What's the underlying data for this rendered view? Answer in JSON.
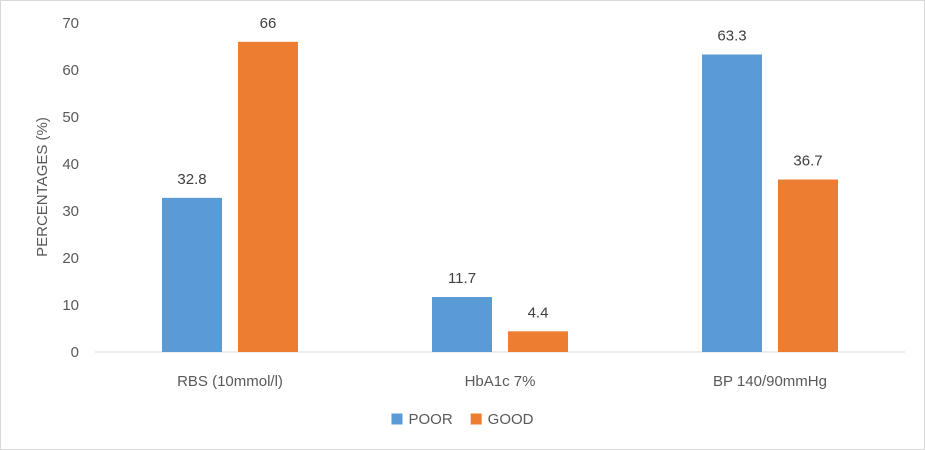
{
  "chart_data": {
    "type": "bar",
    "title": "",
    "xlabel": "",
    "ylabel": "PERCENTAGES (%)",
    "ylim": [
      0,
      70
    ],
    "yticks": [
      0,
      10,
      20,
      30,
      40,
      50,
      60,
      70
    ],
    "grid": false,
    "legend_position": "bottom",
    "categories": [
      "RBS (10mmol/l)",
      "HbA1c 7%",
      "BP 140/90mmHg"
    ],
    "series": [
      {
        "name": "POOR",
        "color": "#5b9bd5",
        "values": [
          32.8,
          11.7,
          63.3
        ],
        "labels": [
          "32.8",
          "11.7",
          "63.3"
        ]
      },
      {
        "name": "GOOD",
        "color": "#ed7d31",
        "values": [
          66,
          4.4,
          36.7
        ],
        "labels": [
          "66",
          "4.4",
          "36.7"
        ]
      }
    ]
  }
}
